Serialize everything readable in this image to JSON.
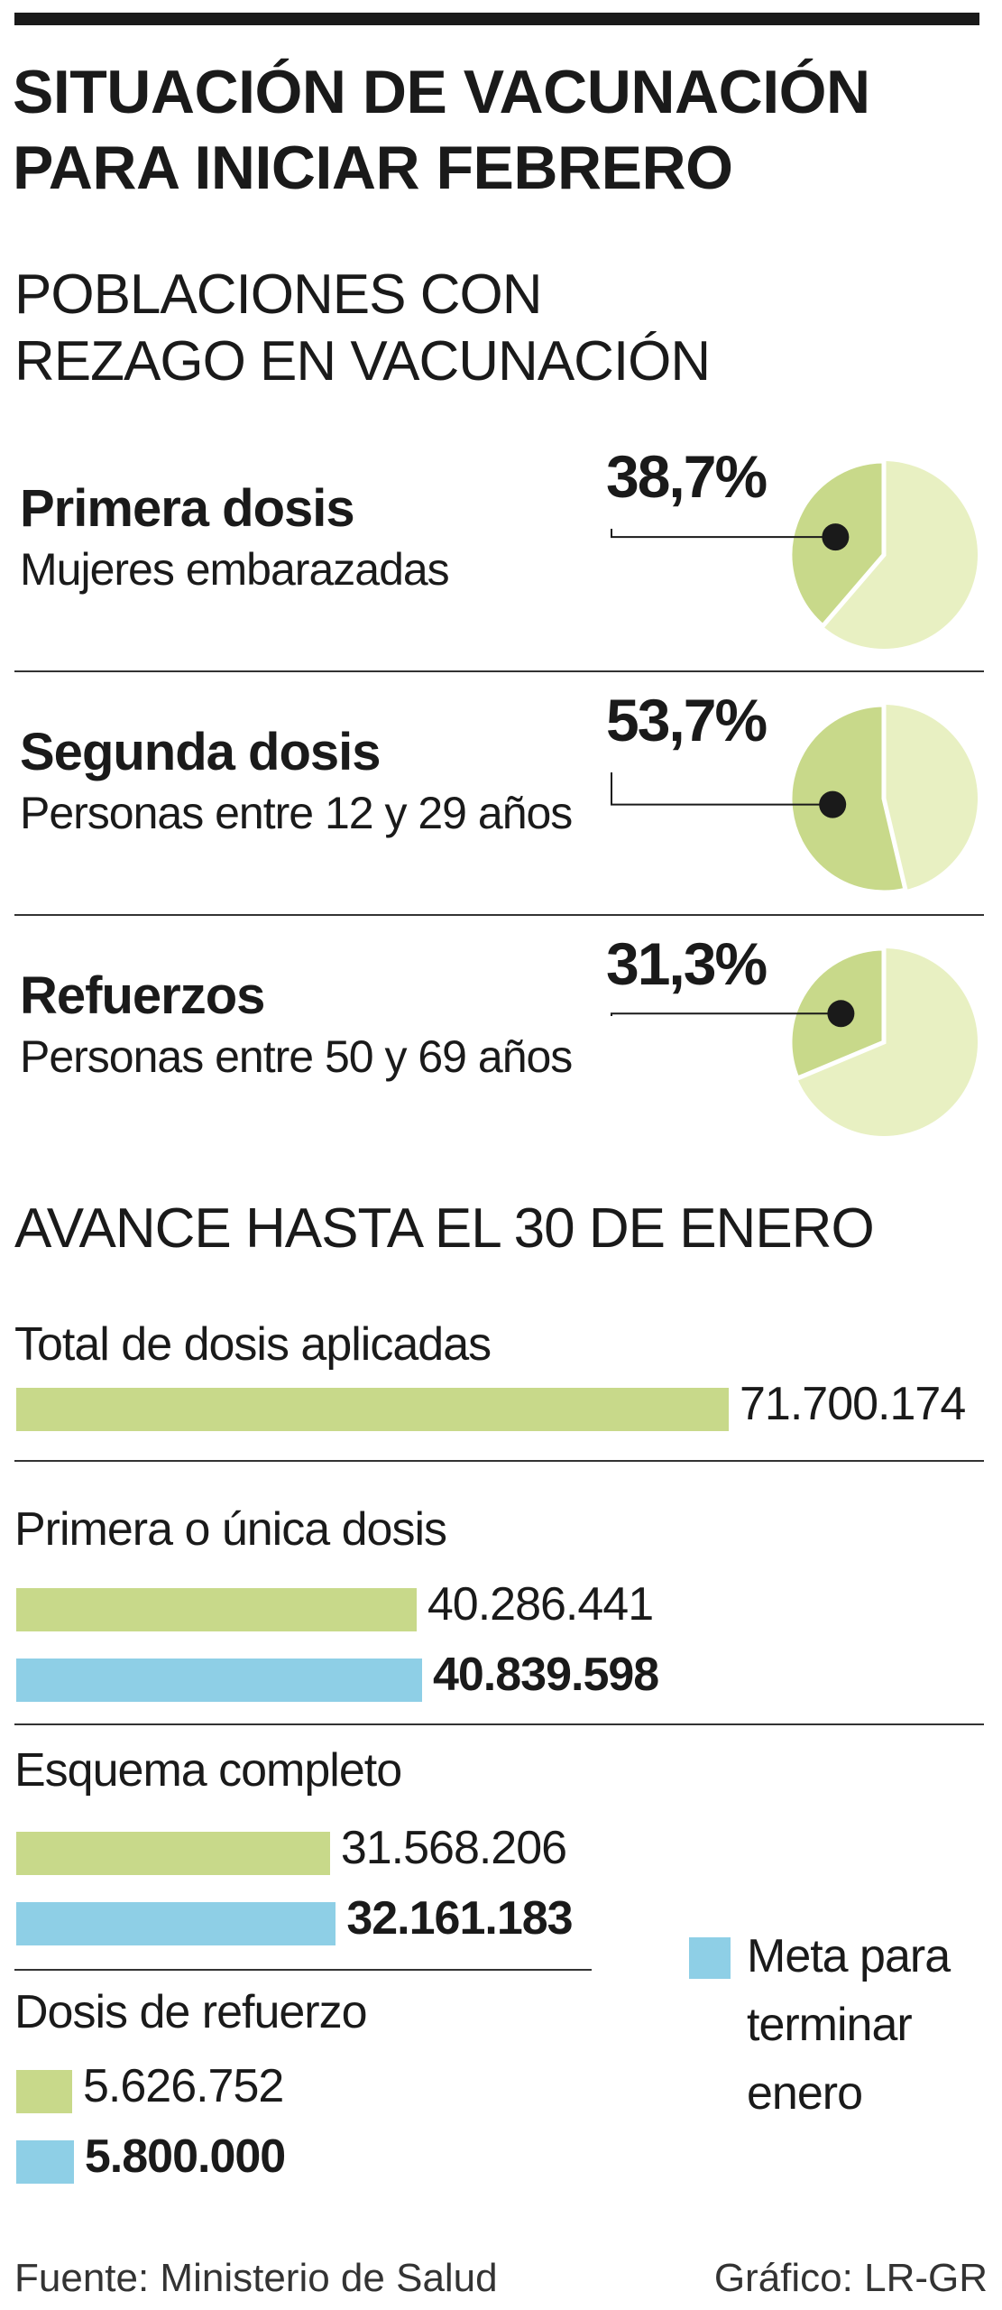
{
  "title_lines": [
    "SITUACIÓN DE VACUNACIÓN",
    "PARA INICIAR FEBRERO"
  ],
  "colors": {
    "green": "#c8d98a",
    "light_green": "#e8f0c2",
    "blue": "#8ecfe6",
    "dark": "#1a1a1a"
  },
  "section1_lines": [
    "POBLACIONES CON",
    "REZAGO EN VACUNACIÓN"
  ],
  "section2_title": "AVANCE HASTA EL 30 DE ENERO",
  "legend_lines": [
    "Meta para",
    "terminar",
    "enero"
  ],
  "source": "Fuente: Ministerio de Salud",
  "credit": "Gráfico: LR-GR",
  "chart_data": [
    {
      "type": "pie",
      "slices": [
        {
          "label": "Primera dosis",
          "sublabel": "Mujeres embarazadas",
          "value": 38.7,
          "display": "38,7%"
        },
        {
          "label": "Segunda dosis",
          "sublabel": "Personas entre 12 y 29 años",
          "value": 53.7,
          "display": "53,7%"
        },
        {
          "label": "Refuerzos",
          "sublabel": "Personas entre 50 y  69 años",
          "value": 31.3,
          "display": "31,3%"
        }
      ]
    },
    {
      "type": "bar",
      "orientation": "horizontal",
      "categories": [
        {
          "label": "Total de dosis aplicadas",
          "bars": [
            {
              "series": "applied",
              "value": 71700174,
              "display": "71.700.174"
            }
          ]
        },
        {
          "label": "Primera o única dosis",
          "bars": [
            {
              "series": "applied",
              "value": 40286441,
              "display": "40.286.441"
            },
            {
              "series": "goal",
              "value": 40839598,
              "display": "40.839.598"
            }
          ]
        },
        {
          "label": "Esquema completo",
          "bars": [
            {
              "series": "applied",
              "value": 31568206,
              "display": "31.568.206"
            },
            {
              "series": "goal",
              "value": 32161183,
              "display": "32.161.183"
            }
          ]
        },
        {
          "label": "Dosis de refuerzo",
          "bars": [
            {
              "series": "applied",
              "value": 5626752,
              "display": "5.626.752"
            },
            {
              "series": "goal",
              "value": 5800000,
              "display": "5.800.000"
            }
          ]
        }
      ],
      "series": [
        {
          "key": "applied",
          "color": "#c8d98a"
        },
        {
          "key": "goal",
          "name": "Meta para terminar enero",
          "color": "#8ecfe6"
        }
      ]
    }
  ]
}
